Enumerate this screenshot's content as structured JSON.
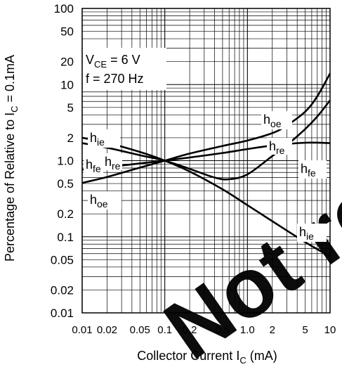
{
  "chart_data": {
    "type": "line",
    "xscale": "log",
    "yscale": "log",
    "xlim": [
      0.01,
      10
    ],
    "ylim": [
      0.01,
      100
    ],
    "xlabel": "Collector Current",
    "xlabel_symbol": "I",
    "xlabel_sub": "C",
    "xlabel_unit": "(mA)",
    "ylabel": "Percentage of Relative to I",
    "ylabel_sub": "C",
    "ylabel_tail": " = 0.1mA",
    "x_ticks": [
      {
        "v": 0.01,
        "label": "0.01"
      },
      {
        "v": 0.02,
        "label": "0.02"
      },
      {
        "v": 0.05,
        "label": "0.05"
      },
      {
        "v": 0.1,
        "label": "0.1"
      },
      {
        "v": 0.2,
        "label": "0.2"
      },
      {
        "v": 0.5,
        "label": "0.5"
      },
      {
        "v": 1,
        "label": "1.0"
      },
      {
        "v": 2,
        "label": "2"
      },
      {
        "v": 5,
        "label": "5"
      },
      {
        "v": 10,
        "label": "10"
      }
    ],
    "y_ticks": [
      {
        "v": 100,
        "label": "100"
      },
      {
        "v": 50,
        "label": "50"
      },
      {
        "v": 20,
        "label": "20"
      },
      {
        "v": 10,
        "label": "10"
      },
      {
        "v": 5,
        "label": "5"
      },
      {
        "v": 2,
        "label": "2"
      },
      {
        "v": 1,
        "label": "1.0"
      },
      {
        "v": 0.5,
        "label": "0.5"
      },
      {
        "v": 0.2,
        "label": "0.2"
      },
      {
        "v": 0.1,
        "label": "0.1"
      },
      {
        "v": 0.05,
        "label": "0.05"
      },
      {
        "v": 0.02,
        "label": "0.02"
      },
      {
        "v": 0.01,
        "label": "0.01"
      }
    ],
    "conditions": [
      {
        "main": "V",
        "sub": "CE",
        "tail": " = 6 V"
      },
      {
        "main": "f = 270 Hz",
        "sub": "",
        "tail": ""
      }
    ],
    "series": [
      {
        "name": "hie",
        "x": [
          0.01,
          0.02,
          0.05,
          0.1,
          0.2,
          0.5,
          1,
          2,
          5,
          10
        ],
        "y": [
          2.0,
          1.72,
          1.3,
          1.0,
          0.72,
          0.42,
          0.26,
          0.16,
          0.085,
          0.055
        ]
      },
      {
        "name": "hre",
        "x": [
          0.01,
          0.02,
          0.05,
          0.1,
          0.2,
          0.4,
          0.6,
          1,
          2,
          3,
          5,
          7,
          10
        ],
        "y": [
          1.7,
          1.48,
          1.18,
          1.0,
          0.78,
          0.6,
          0.57,
          0.66,
          1.15,
          1.6,
          2.6,
          3.8,
          6.2
        ]
      },
      {
        "name": "hfe",
        "x": [
          0.01,
          0.02,
          0.05,
          0.1,
          0.2,
          0.5,
          1,
          2,
          5,
          10
        ],
        "y": [
          0.76,
          0.82,
          0.92,
          1.0,
          1.1,
          1.26,
          1.42,
          1.58,
          1.72,
          1.7
        ]
      },
      {
        "name": "hoe",
        "x": [
          0.01,
          0.02,
          0.05,
          0.1,
          0.2,
          0.5,
          1,
          2,
          3,
          5,
          7,
          10
        ],
        "y": [
          0.51,
          0.61,
          0.81,
          1.0,
          1.24,
          1.56,
          1.84,
          2.3,
          2.9,
          4.4,
          7.0,
          14.0
        ]
      }
    ],
    "legend": [
      {
        "main": "h",
        "sub": "ie",
        "series": "hie"
      },
      {
        "main": "h",
        "sub": "fe",
        "series": "hfe"
      },
      {
        "main": "h",
        "sub": "re",
        "series": "hre"
      },
      {
        "main": "h",
        "sub": "oe",
        "series": "hoe"
      },
      {
        "main": "h",
        "sub": "oe",
        "series": "hoe"
      },
      {
        "main": "h",
        "sub": "re",
        "series": "hre"
      },
      {
        "main": "h",
        "sub": "fe",
        "series": "hfe"
      },
      {
        "main": "h",
        "sub": "ie",
        "series": "hie"
      }
    ],
    "watermark_color": "#ff0000",
    "grid": true
  }
}
